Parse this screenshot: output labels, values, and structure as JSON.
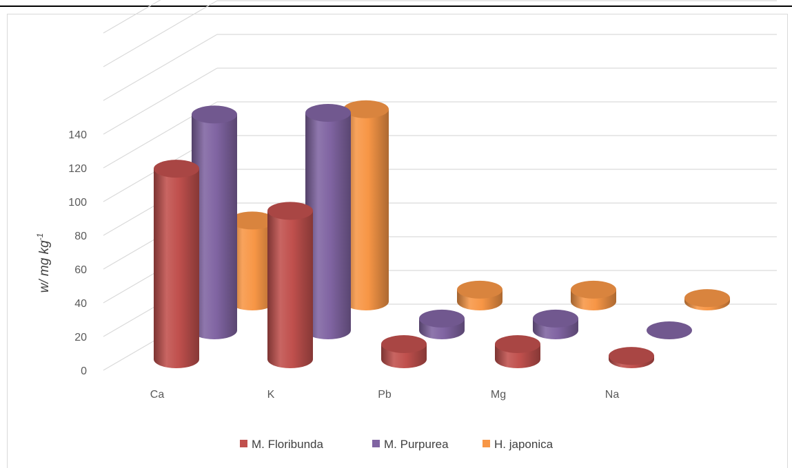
{
  "chart_data": {
    "type": "bar",
    "style": "3d-cylinder",
    "categories": [
      "Ca",
      "K",
      "Pb",
      "Mg",
      "Na"
    ],
    "series": [
      {
        "name": "M. Floribunda",
        "color": "#c0504d",
        "values": [
          113,
          88,
          9,
          9,
          2
        ]
      },
      {
        "name": "M. Purpurea",
        "color": "#8064a2",
        "values": [
          128,
          129,
          7,
          7,
          0
        ]
      },
      {
        "name": "H. japonica",
        "color": "#f79646",
        "values": [
          48,
          114,
          7,
          7,
          2
        ]
      }
    ],
    "ylabel_main": "w/ mg kg",
    "ylabel_sup": "-1",
    "yticks": [
      0,
      20,
      40,
      60,
      80,
      100,
      120,
      140
    ],
    "ylim": [
      0,
      140
    ],
    "grid": true,
    "legend_position": "bottom"
  }
}
